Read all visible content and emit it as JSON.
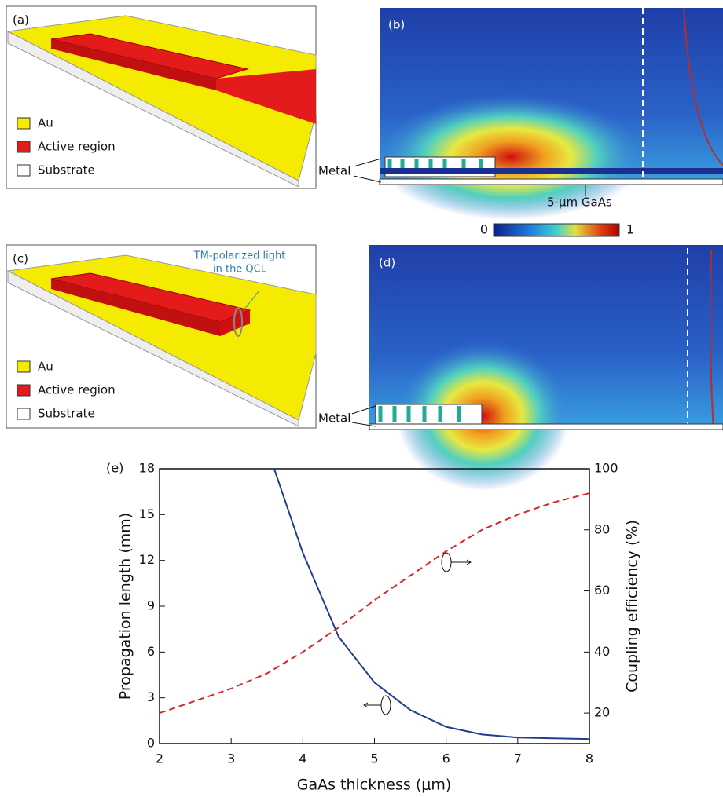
{
  "panels": {
    "a": {
      "label": "(a)",
      "legend": [
        "Au",
        "Active region",
        "Substrate"
      ]
    },
    "b": {
      "label": "(b)",
      "metal": "Metal",
      "gaas": "5-μm GaAs"
    },
    "colorbar": {
      "min": 0,
      "max": 1
    },
    "c": {
      "label": "(c)",
      "legend": [
        "Au",
        "Active region",
        "Substrate"
      ],
      "annotation": [
        "TM-polarized light",
        "in the QCL"
      ]
    },
    "d": {
      "label": "(d)",
      "metal": "Metal"
    }
  },
  "chart_data": {
    "type": "line",
    "label": "(e)",
    "x_label": "GaAs thickness (μm)",
    "y_label": "Propagation length (mm)",
    "y2_label": "Coupling efficiency (%)",
    "xlim": [
      2,
      8
    ],
    "xticks": [
      2,
      3,
      4,
      5,
      6,
      7,
      8
    ],
    "ylim": [
      0,
      18
    ],
    "yticks": [
      0,
      3,
      6,
      9,
      12,
      15,
      18
    ],
    "y2lim": [
      10,
      100
    ],
    "y2ticks": [
      20,
      40,
      60,
      80,
      100
    ],
    "series": [
      {
        "color": "#1f3f8f",
        "dash": false,
        "x": [
          3.6,
          4,
          4.5,
          5,
          5.5,
          6,
          6.5,
          7,
          7.5,
          8
        ],
        "values": [
          18,
          12.5,
          7,
          4,
          2.2,
          1.1,
          0.6,
          0.4,
          0.35,
          0.3
        ]
      },
      {
        "color": "#d62728",
        "dash": true,
        "axis": "y2",
        "x": [
          2,
          2.5,
          3,
          3.5,
          4,
          4.5,
          5,
          5.5,
          6,
          6.5,
          7,
          7.5,
          8
        ],
        "values": [
          20,
          24,
          28,
          33,
          40,
          48,
          57,
          65,
          73,
          80,
          85,
          89,
          92
        ]
      }
    ]
  }
}
